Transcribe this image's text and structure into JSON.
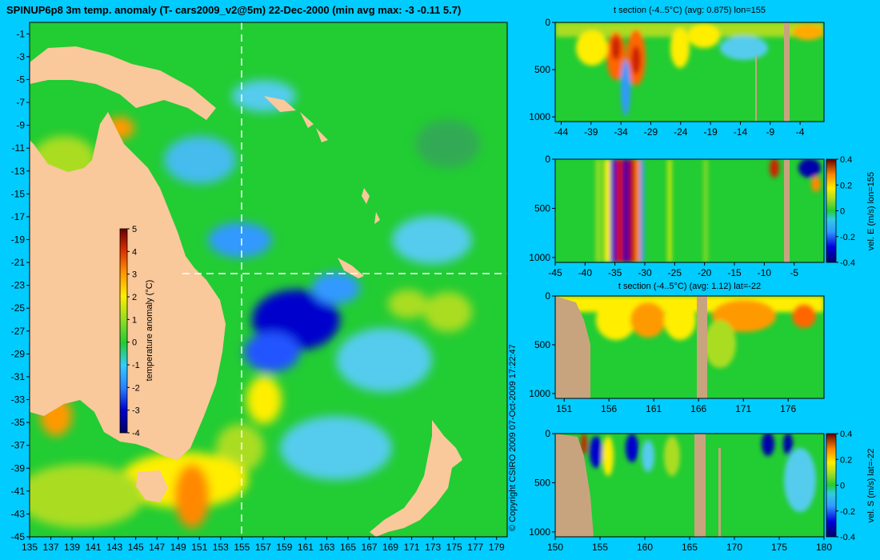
{
  "title": "SPINUP6p8 3m temp. anomaly (T- cars2009_v2@5m) 22-Dec-2000 (min avg max: -3 -0.11 5.7)",
  "copyright": "© Copyright CSIRO 2009   07-Oct-2009 17:22:47",
  "colors": {
    "background": "#00ccff",
    "land": "#f9c89b",
    "section_land": "#c8a47e",
    "ocean_mid": "#22cc33"
  },
  "chart_data": [
    {
      "type": "heatmap",
      "id": "map",
      "xlim": [
        135,
        180
      ],
      "ylim": [
        -45,
        0
      ],
      "x_ticks": [
        "135",
        "137",
        "139",
        "141",
        "143",
        "145",
        "147",
        "149",
        "151",
        "153",
        "155",
        "157",
        "159",
        "161",
        "163",
        "165",
        "167",
        "169",
        "171",
        "173",
        "175",
        "177",
        "179"
      ],
      "y_ticks": [
        "-1",
        "-3",
        "-5",
        "-7",
        "-9",
        "-11",
        "-13",
        "-15",
        "-17",
        "-19",
        "-21",
        "-23",
        "-25",
        "-27",
        "-29",
        "-31",
        "-33",
        "-35",
        "-37",
        "-39",
        "-41",
        "-43",
        "-45"
      ],
      "section_lon": 155,
      "section_lat": -22,
      "colorbar": {
        "label": "temperature anomaly (°C)",
        "range": [
          -4,
          5
        ],
        "ticks": [
          "5",
          "4",
          "3",
          "2",
          "1",
          "0",
          "-1",
          "-2",
          "-3",
          "-4"
        ]
      }
    },
    {
      "type": "heatmap",
      "id": "panel1",
      "title": "t section (-4..5°C) (avg: 0.875) lon=155",
      "xlim": [
        -45,
        0
      ],
      "ylim": [
        1050,
        0
      ],
      "x_ticks": [
        "-44",
        "-39",
        "-34",
        "-29",
        "-24",
        "-19",
        "-14",
        "-9",
        "-4"
      ],
      "y_ticks": [
        "0",
        "500",
        "1000"
      ]
    },
    {
      "type": "heatmap",
      "id": "panel2",
      "title": "",
      "xlim": [
        -45,
        0
      ],
      "ylim": [
        1050,
        0
      ],
      "x_ticks": [
        "-45",
        "-40",
        "-35",
        "-30",
        "-25",
        "-20",
        "-15",
        "-10",
        "-5"
      ],
      "y_ticks": [
        "0",
        "500",
        "1000"
      ],
      "colorbar": {
        "label": "vel. E (m/s) lon=155",
        "range": [
          -0.4,
          0.4
        ],
        "ticks": [
          "0.4",
          "0.2",
          "0",
          "-0.2",
          "-0.4"
        ]
      }
    },
    {
      "type": "heatmap",
      "id": "panel3",
      "title": "t section (-4..5°C) (avg: 1.12) lat=-22",
      "xlim": [
        150,
        180
      ],
      "ylim": [
        1050,
        0
      ],
      "x_ticks": [
        "151",
        "156",
        "161",
        "166",
        "171",
        "176"
      ],
      "y_ticks": [
        "0",
        "500",
        "1000"
      ]
    },
    {
      "type": "heatmap",
      "id": "panel4",
      "title": "",
      "xlim": [
        150,
        180
      ],
      "ylim": [
        1050,
        0
      ],
      "x_ticks": [
        "150",
        "155",
        "160",
        "165",
        "170",
        "175",
        "180"
      ],
      "y_ticks": [
        "0",
        "500",
        "1000"
      ],
      "colorbar": {
        "label": "vel. S (m/s) lat=-22",
        "range": [
          -0.4,
          0.4
        ],
        "ticks": [
          "0.4",
          "0.2",
          "0",
          "-0.2",
          "-0.4"
        ]
      }
    }
  ]
}
